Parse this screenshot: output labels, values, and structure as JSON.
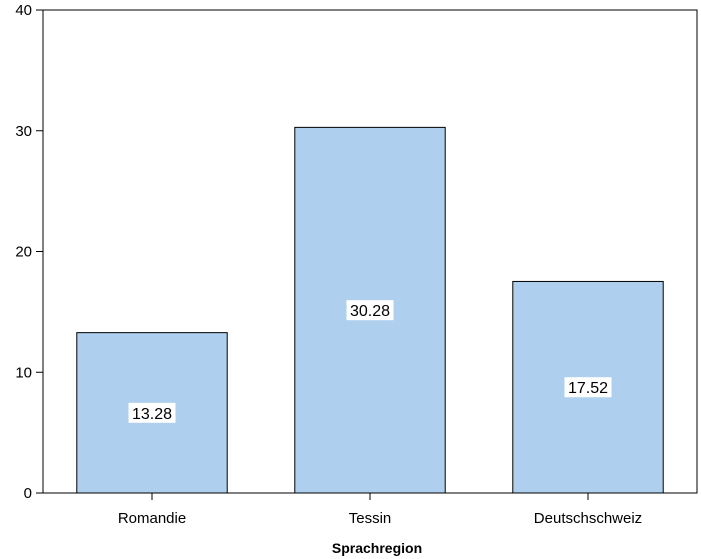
{
  "chart_data": {
    "type": "bar",
    "categories": [
      "Romandie",
      "Tessin",
      "Deutschschweiz"
    ],
    "values": [
      13.28,
      30.28,
      17.52
    ],
    "data_labels": [
      "13.28",
      "30.28",
      "17.52"
    ],
    "xlabel": "Sprachregion",
    "ylabel": "",
    "ylim": [
      0,
      40
    ],
    "yticks": [
      0,
      10,
      20,
      30,
      40
    ],
    "grid": false,
    "bar_color": "#aed0ee",
    "bar_edge_color": "#000000"
  }
}
